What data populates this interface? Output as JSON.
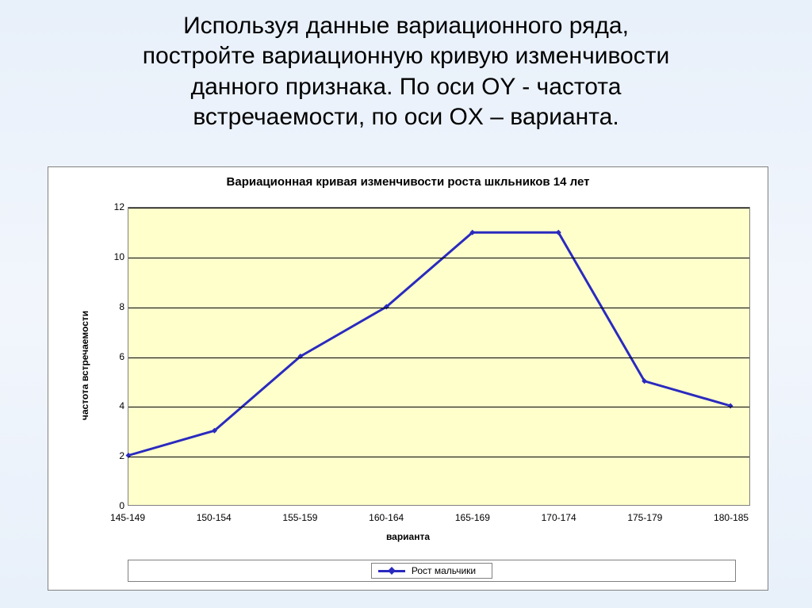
{
  "heading_lines": [
    "Используя данные вариационного ряда,",
    "постройте вариационную кривую изменчивости",
    "данного признака. По оси OY - частота",
    "встречаемости, по оси OX – варианта."
  ],
  "chart": {
    "type": "line",
    "title": "Вариационная кривая изменчивости роста шкльников 14 лет",
    "title_fontsize": 15,
    "plot_background": "#ffffcc",
    "border_color": "#808080",
    "grid_color": "#000000",
    "xlabel": "варианта",
    "ylabel": "частота встречаемости",
    "label_fontsize": 12,
    "label_fontweight": "700",
    "ylim": [
      0,
      12
    ],
    "ytick_step": 2,
    "yticks": [
      0,
      2,
      4,
      6,
      8,
      10,
      12
    ],
    "categories": [
      "145-149",
      "150-154",
      "155-159",
      "160-164",
      "165-169",
      "170-174",
      "175-179",
      "180-185"
    ],
    "series": [
      {
        "name": "Рост мальчики",
        "color": "#2a2abf",
        "line_width": 3,
        "marker": "diamond",
        "marker_size": 7,
        "values": [
          2,
          3,
          6,
          8,
          11,
          11,
          5,
          4
        ]
      }
    ],
    "legend": {
      "position": "bottom",
      "border_color": "#808080",
      "background": "#ffffff"
    },
    "tick_fontsize": 12
  },
  "slide_background_top": "#e8f0fa",
  "slide_background_bottom": "#e8f0fa"
}
